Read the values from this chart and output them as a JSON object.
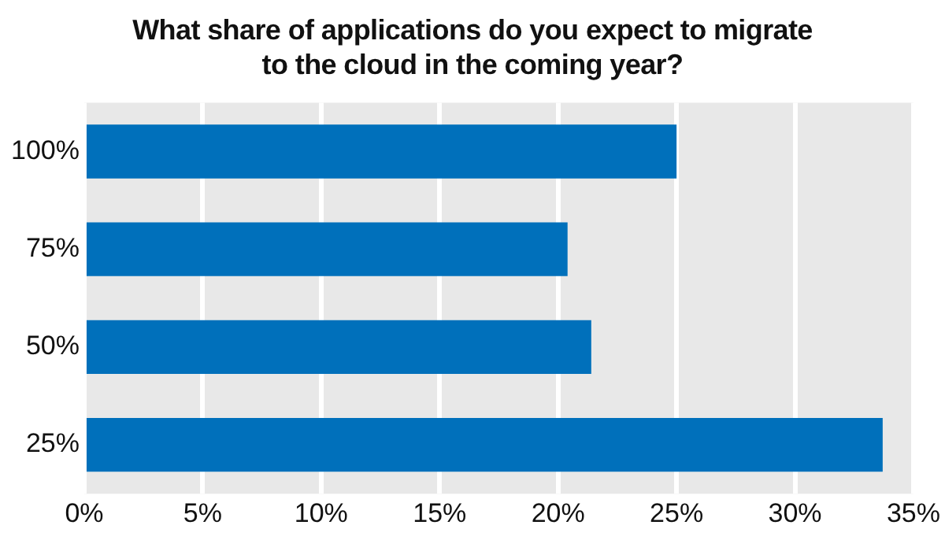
{
  "chart_data": {
    "type": "bar",
    "orientation": "horizontal",
    "title": "What share of applications do you expect to migrate to the cloud in the coming year?",
    "categories": [
      "100%",
      "75%",
      "50%",
      "25%"
    ],
    "values": [
      25.0,
      20.4,
      21.4,
      33.7
    ],
    "color": "#0070bb",
    "xlim": [
      0,
      35
    ],
    "xticks": [
      {
        "value": 0,
        "label": "0%"
      },
      {
        "value": 5,
        "label": "5%"
      },
      {
        "value": 10,
        "label": "10%"
      },
      {
        "value": 15,
        "label": "15%"
      },
      {
        "value": 20,
        "label": "20%"
      },
      {
        "value": 25,
        "label": "25%"
      },
      {
        "value": 30,
        "label": "30%"
      },
      {
        "value": 35,
        "label": "35%"
      }
    ],
    "grid": "x"
  }
}
